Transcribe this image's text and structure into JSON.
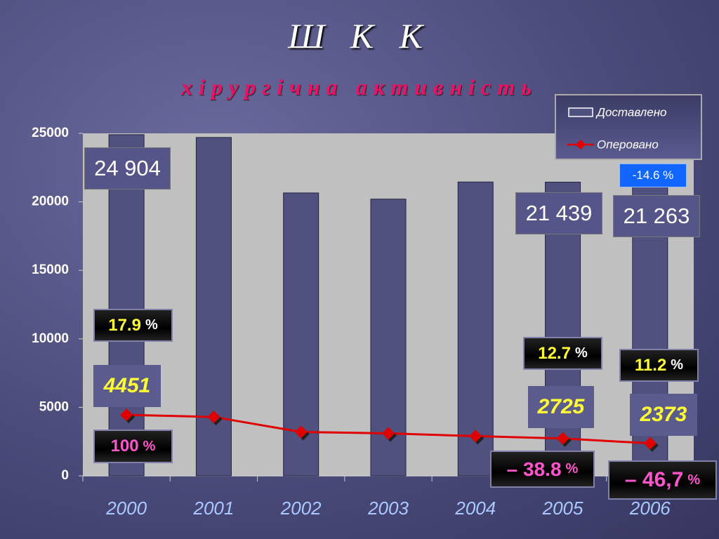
{
  "chart_data": {
    "type": "bar-line",
    "title": "Ш К К",
    "subtitle": "хірургічна активність",
    "categories": [
      "2000",
      "2001",
      "2002",
      "2003",
      "2004",
      "2005",
      "2006"
    ],
    "series": [
      {
        "name": "Доставлено",
        "type": "bar",
        "color": "#51517f",
        "values": [
          24904,
          24700,
          20650,
          20200,
          21450,
          21439,
          21263
        ],
        "value_labels": [
          "24 904",
          null,
          null,
          null,
          null,
          "21 439",
          "21 263"
        ]
      },
      {
        "name": "Оперовано",
        "type": "line",
        "color": "#e00000",
        "values": [
          4451,
          4300,
          3200,
          3100,
          2900,
          2725,
          2373
        ]
      }
    ],
    "ylim": [
      0,
      25000
    ],
    "yticks": [
      0,
      5000,
      10000,
      15000,
      20000,
      25000
    ],
    "grid": false,
    "legend": "upper right",
    "annotations": [
      {
        "text": "-14.6 %"
      },
      {
        "number": "17.9",
        "unit": "%"
      },
      {
        "number": "100",
        "unit": "%"
      },
      {
        "number": "12.7",
        "unit": "%"
      },
      {
        "number": "– 38.8",
        "unit": "%"
      },
      {
        "number": "11.2",
        "unit": "%"
      },
      {
        "number": "– 46,7",
        "unit": "%"
      }
    ]
  }
}
